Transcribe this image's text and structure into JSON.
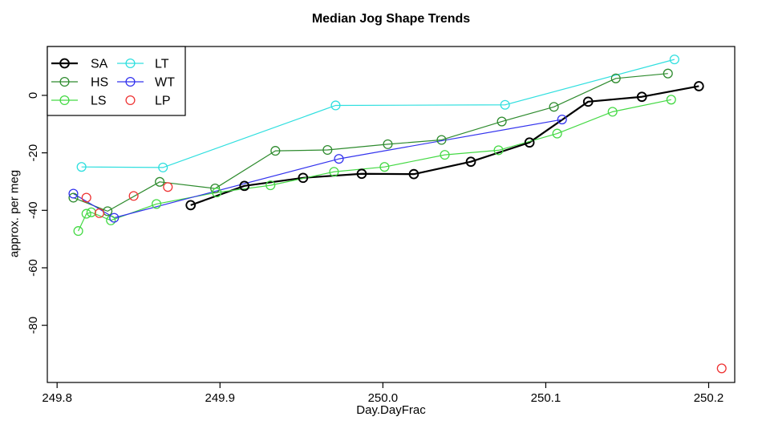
{
  "chart_data": {
    "type": "line",
    "title": "Median Jog Shape Trends",
    "xlabel": "Day.DayFrac",
    "ylabel": "approx. per meg",
    "x_ticks": [
      249.8,
      249.9,
      250.0,
      250.1,
      250.2
    ],
    "x_tick_labels": [
      "249.8",
      "249.9",
      "250.0",
      "250.1",
      "250.2"
    ],
    "y_ticks": [
      0,
      -20,
      -40,
      -60,
      -80
    ],
    "y_tick_labels": [
      "0",
      "-20",
      "-40",
      "-60",
      "-80"
    ],
    "xlim": [
      249.794,
      250.216
    ],
    "ylim": [
      -99.9,
      17.0
    ],
    "grid": false,
    "legend_position": "top-left",
    "marker": "open-circle",
    "background_color": "#ffffff",
    "axis_color": "#000000",
    "series": [
      {
        "name": "SA",
        "color": "#000000",
        "line": true,
        "line_width": 2.2,
        "points": [
          [
            249.882,
            -38.2
          ],
          [
            249.915,
            -31.5
          ],
          [
            249.951,
            -28.7
          ],
          [
            249.987,
            -27.3
          ],
          [
            250.019,
            -27.4
          ],
          [
            250.054,
            -23.1
          ],
          [
            250.09,
            -16.4
          ],
          [
            250.126,
            -2.2
          ],
          [
            250.159,
            -0.5
          ],
          [
            250.194,
            3.2
          ]
        ]
      },
      {
        "name": "HS",
        "color": "#2E8B2E",
        "line": true,
        "line_width": 1.2,
        "points": [
          [
            249.81,
            -35.6
          ],
          [
            249.831,
            -40.3
          ],
          [
            249.863,
            -30.1
          ],
          [
            249.897,
            -32.4
          ],
          [
            249.934,
            -19.3
          ],
          [
            249.966,
            -19.0
          ],
          [
            250.003,
            -17.0
          ],
          [
            250.036,
            -15.5
          ],
          [
            250.073,
            -9.1
          ],
          [
            250.105,
            -4.0
          ],
          [
            250.143,
            5.9
          ],
          [
            250.175,
            7.6
          ]
        ]
      },
      {
        "name": "LS",
        "color": "#44D944",
        "line": true,
        "line_width": 1.2,
        "points": [
          [
            249.813,
            -47.2
          ],
          [
            249.818,
            -41.2
          ],
          [
            249.821,
            -40.7
          ],
          [
            249.833,
            -43.5
          ],
          [
            249.861,
            -37.8
          ],
          [
            249.898,
            -33.8
          ],
          [
            249.931,
            -31.3
          ],
          [
            249.97,
            -26.6
          ],
          [
            250.001,
            -24.9
          ],
          [
            250.038,
            -20.7
          ],
          [
            250.071,
            -19.1
          ],
          [
            250.107,
            -13.3
          ],
          [
            250.141,
            -5.7
          ],
          [
            250.177,
            -1.5
          ]
        ]
      },
      {
        "name": "LT",
        "color": "#30DFDF",
        "line": true,
        "line_width": 1.2,
        "points": [
          [
            249.815,
            -24.9
          ],
          [
            249.865,
            -25.1
          ],
          [
            249.971,
            -3.5
          ],
          [
            250.075,
            -3.3
          ],
          [
            250.179,
            12.5
          ]
        ]
      },
      {
        "name": "WT",
        "color": "#3333EE",
        "line": true,
        "line_width": 1.2,
        "points": [
          [
            249.81,
            -34.2
          ],
          [
            249.835,
            -42.6
          ],
          [
            249.973,
            -22.1
          ],
          [
            250.11,
            -8.4
          ]
        ]
      },
      {
        "name": "LP",
        "color": "#EE3333",
        "line": false,
        "line_width": 1.2,
        "points": [
          [
            249.818,
            -35.6
          ],
          [
            249.826,
            -41.0
          ],
          [
            249.847,
            -35.0
          ],
          [
            249.868,
            -31.9
          ],
          [
            250.208,
            -95.0
          ]
        ]
      }
    ]
  }
}
